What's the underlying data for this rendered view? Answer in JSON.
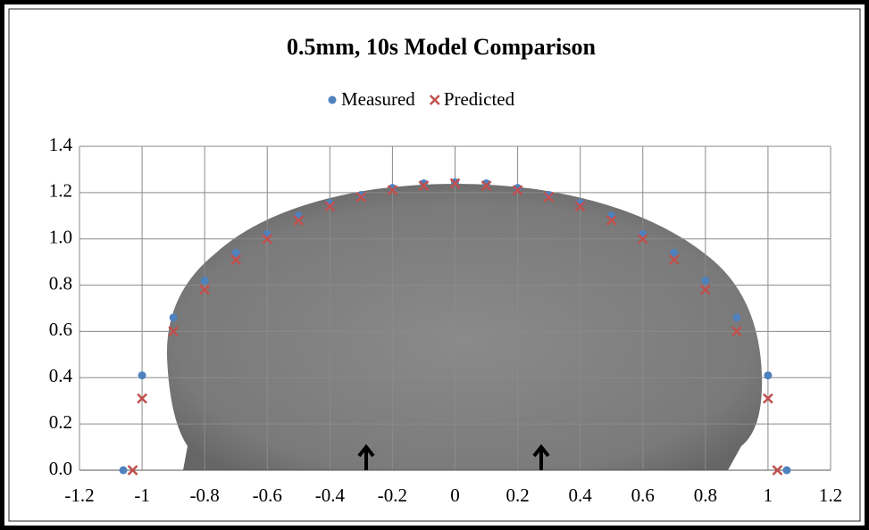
{
  "chart_data": {
    "type": "scatter",
    "title": "0.5mm, 10s Model Comparison",
    "series": [
      {
        "name": "Measured",
        "color": "#4f81bd",
        "marker": "circle",
        "x": [
          -1.06,
          -1,
          -0.9,
          -0.8,
          -0.7,
          -0.6,
          -0.5,
          -0.4,
          -0.3,
          -0.2,
          -0.1,
          0,
          0.1,
          0.2,
          0.3,
          0.4,
          0.5,
          0.6,
          0.7,
          0.8,
          0.9,
          1,
          1.06
        ],
        "values": [
          0,
          0.41,
          0.66,
          0.82,
          0.94,
          1.02,
          1.1,
          1.155,
          1.19,
          1.22,
          1.24,
          1.245,
          1.24,
          1.22,
          1.19,
          1.155,
          1.1,
          1.02,
          0.94,
          0.82,
          0.66,
          0.41,
          0
        ]
      },
      {
        "name": "Predicted",
        "color": "#c0504d",
        "marker": "x",
        "x": [
          -1.03,
          -1,
          -0.9,
          -0.8,
          -0.7,
          -0.6,
          -0.5,
          -0.4,
          -0.3,
          -0.2,
          -0.1,
          0,
          0.1,
          0.2,
          0.3,
          0.4,
          0.5,
          0.6,
          0.7,
          0.8,
          0.9,
          1,
          1.03
        ],
        "values": [
          0,
          0.31,
          0.6,
          0.78,
          0.91,
          1.0,
          1.08,
          1.14,
          1.18,
          1.21,
          1.23,
          1.24,
          1.23,
          1.21,
          1.18,
          1.14,
          1.08,
          1.0,
          0.91,
          0.78,
          0.6,
          0.31,
          0
        ]
      }
    ],
    "xlim": [
      -1.2,
      1.2
    ],
    "xticks": [
      -1.2,
      -1,
      -0.8,
      -0.6,
      -0.4,
      -0.2,
      0,
      0.2,
      0.4,
      0.6,
      0.8,
      1,
      1.2
    ],
    "ylim": [
      0,
      1.4
    ],
    "yticks": [
      {
        "value": 0,
        "label": "0.0"
      },
      0.2,
      0.4,
      0.6,
      0.8,
      {
        "value": 1,
        "label": "1.0"
      },
      1.2,
      1.4
    ],
    "grid": true,
    "legend": "top"
  }
}
